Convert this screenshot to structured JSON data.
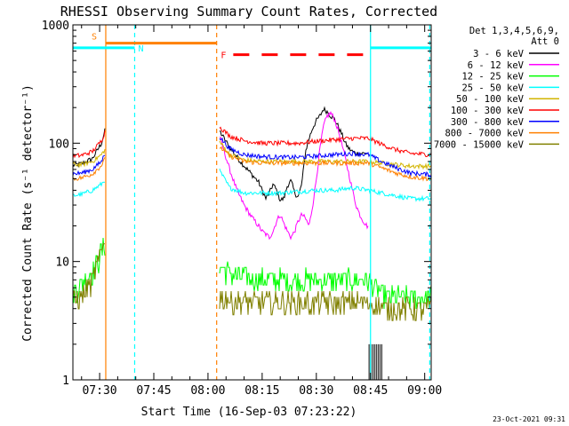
{
  "chart_data": {
    "type": "line",
    "title": "RHESSI Observing Summary Count Rates, Corrected",
    "xlabel": "Start Time (16-Sep-03 07:23:22)",
    "ylabel": "Corrected Count Rate (s⁻¹ detector⁻¹)",
    "yscale": "log",
    "ylim": [
      1,
      1000
    ],
    "xlim": [
      22.6,
      121.8
    ],
    "x_units": "minutes after 07:00 UT",
    "x_ticks": [
      {
        "v": 30,
        "label": "07:30"
      },
      {
        "v": 45,
        "label": "07:45"
      },
      {
        "v": 60,
        "label": "08:00"
      },
      {
        "v": 75,
        "label": "08:15"
      },
      {
        "v": 90,
        "label": "08:30"
      },
      {
        "v": 105,
        "label": "08:45"
      },
      {
        "v": 120,
        "label": "09:00"
      }
    ],
    "y_ticks": [
      {
        "v": 1,
        "label": "1"
      },
      {
        "v": 10,
        "label": "10"
      },
      {
        "v": 100,
        "label": "100"
      },
      {
        "v": 1000,
        "label": "1000"
      }
    ],
    "legend": {
      "placement": "right",
      "header": [
        "Det 1,3,4,5,6,9,",
        "Att 0"
      ]
    },
    "series": [
      {
        "name": "3 - 6 keV",
        "color": "#000000",
        "x": [
          22.6,
          25,
          28,
          30.5,
          31.7,
          63,
          66,
          69,
          72,
          74,
          75,
          76,
          77,
          78,
          79,
          80,
          81,
          82,
          83,
          84,
          85,
          86,
          87,
          88,
          89,
          90,
          91,
          92,
          93,
          94,
          95,
          96,
          97,
          98,
          99,
          100,
          101,
          103,
          104,
          104.5
        ],
        "y": [
          65,
          67,
          74,
          100,
          135,
          130,
          92,
          70,
          55,
          47,
          40,
          34,
          38,
          45,
          40,
          33,
          34,
          44,
          48,
          38,
          35,
          46,
          85,
          110,
          135,
          155,
          170,
          195,
          185,
          170,
          160,
          140,
          120,
          100,
          90,
          85,
          82,
          82,
          82,
          82
        ]
      },
      {
        "name": "6 - 12 keV",
        "color": "#ff00ff",
        "x": [
          63,
          66,
          68,
          70,
          72,
          74,
          75,
          76,
          77,
          78,
          79,
          80,
          81,
          82,
          83,
          84,
          85,
          86,
          87,
          88,
          89,
          90,
          91,
          92,
          93,
          94,
          95,
          96,
          97,
          98,
          99,
          100,
          101,
          102,
          103,
          104,
          104.5
        ],
        "y": [
          120,
          60,
          40,
          30,
          24,
          20,
          18,
          17,
          16,
          18,
          22,
          25,
          21,
          18,
          16,
          18,
          22,
          25,
          23,
          20,
          30,
          50,
          90,
          140,
          170,
          180,
          160,
          130,
          100,
          75,
          55,
          40,
          30,
          25,
          22,
          20,
          20
        ]
      },
      {
        "name": "12 - 25 keV",
        "color": "#00ff00",
        "x": [
          22.6,
          26,
          29,
          30.5,
          31.7,
          63,
          68,
          75,
          85,
          95,
          104.5,
          106,
          108,
          110,
          112,
          115,
          118,
          121.8
        ],
        "y": [
          5.5,
          7,
          9,
          12,
          15,
          9,
          7.5,
          7,
          7,
          7,
          7,
          6,
          5.5,
          5,
          5,
          5,
          5,
          5
        ]
      },
      {
        "name": "25 - 50 keV",
        "color": "#00ffff",
        "x": [
          22.6,
          25,
          28,
          30.5,
          31.7,
          63,
          66,
          70,
          75,
          80,
          85,
          90,
          95,
          100,
          104.5,
          108,
          112,
          116,
          121.8
        ],
        "y": [
          36,
          37,
          40,
          45,
          50,
          60,
          42,
          38,
          38,
          38,
          39,
          40,
          40,
          42,
          40,
          38,
          36,
          34,
          34
        ]
      },
      {
        "name": "50 - 100 keV",
        "color": "#d2b400",
        "x": [
          22.6,
          25,
          28,
          30.5,
          31.7,
          63,
          66,
          70,
          75,
          80,
          85,
          90,
          95,
          100,
          104.5,
          108,
          112,
          116,
          121.8
        ],
        "y": [
          66,
          66,
          70,
          80,
          90,
          105,
          80,
          72,
          70,
          70,
          70,
          70,
          70,
          70,
          70,
          68,
          66,
          64,
          64
        ]
      },
      {
        "name": "100 - 300 keV",
        "color": "#ff0000",
        "x": [
          22.6,
          25,
          28,
          30.5,
          31.7,
          63,
          66,
          70,
          75,
          80,
          85,
          90,
          95,
          100,
          104.5,
          108,
          112,
          116,
          121.8
        ],
        "y": [
          78,
          79,
          85,
          105,
          130,
          140,
          115,
          105,
          100,
          100,
          100,
          104,
          107,
          110,
          110,
          98,
          88,
          82,
          80
        ]
      },
      {
        "name": "300 - 800 keV",
        "color": "#0000ff",
        "x": [
          22.6,
          25,
          28,
          30.5,
          31.7,
          63,
          66,
          70,
          75,
          80,
          85,
          90,
          95,
          100,
          104.5,
          108,
          112,
          116,
          121.8
        ],
        "y": [
          55,
          56,
          60,
          70,
          85,
          115,
          90,
          80,
          77,
          76,
          76,
          78,
          80,
          82,
          80,
          70,
          62,
          56,
          54
        ]
      },
      {
        "name": "800 - 7000 keV",
        "color": "#ff8000",
        "x": [
          22.6,
          25,
          28,
          30.5,
          31.7,
          63,
          66,
          70,
          75,
          80,
          85,
          90,
          95,
          100,
          104.5,
          108,
          112,
          116,
          121.8
        ],
        "y": [
          50,
          51,
          55,
          65,
          75,
          95,
          78,
          70,
          68,
          68,
          68,
          68,
          68,
          68,
          68,
          62,
          56,
          52,
          50
        ]
      },
      {
        "name": "7000 - 15000 keV",
        "color": "#808000",
        "x": [
          22.6,
          26,
          28,
          30.5,
          31.7,
          63,
          68,
          75,
          85,
          95,
          104.5,
          106,
          110,
          115,
          121.8
        ],
        "y": [
          4.5,
          5.5,
          7,
          12,
          18,
          5,
          4.5,
          4.5,
          4.5,
          4.5,
          4.5,
          4.2,
          4,
          4,
          4
        ]
      }
    ],
    "annotations": [
      {
        "label": "S",
        "color": "#ff8000",
        "x_range": [
          31.7,
          62.4
        ],
        "y": 700,
        "style": "solid"
      },
      {
        "label": "N",
        "color": "#00ffff",
        "x_range": [
          22.6,
          39.7
        ],
        "y": 640,
        "style": "solid"
      },
      {
        "label": "N",
        "color": "#00ffff",
        "x_range": [
          105,
          121.8
        ],
        "y": 640,
        "style": "solid"
      },
      {
        "label": "F",
        "color": "#ff0000",
        "x_range": [
          67,
          104.5
        ],
        "y": 560,
        "style": "dashed"
      }
    ],
    "vertical_markers": [
      {
        "x": 31.7,
        "color": "#ff8000",
        "style": "solid"
      },
      {
        "x": 39.7,
        "color": "#00ffff",
        "style": "dashed"
      },
      {
        "x": 62.4,
        "color": "#ff8000",
        "style": "dashed"
      },
      {
        "x": 105,
        "color": "#00ffff",
        "style": "solid"
      },
      {
        "x": 121.4,
        "color": "#00ffff",
        "style": "dashed"
      }
    ],
    "footer_text": "23-Oct-2021 09:31"
  }
}
